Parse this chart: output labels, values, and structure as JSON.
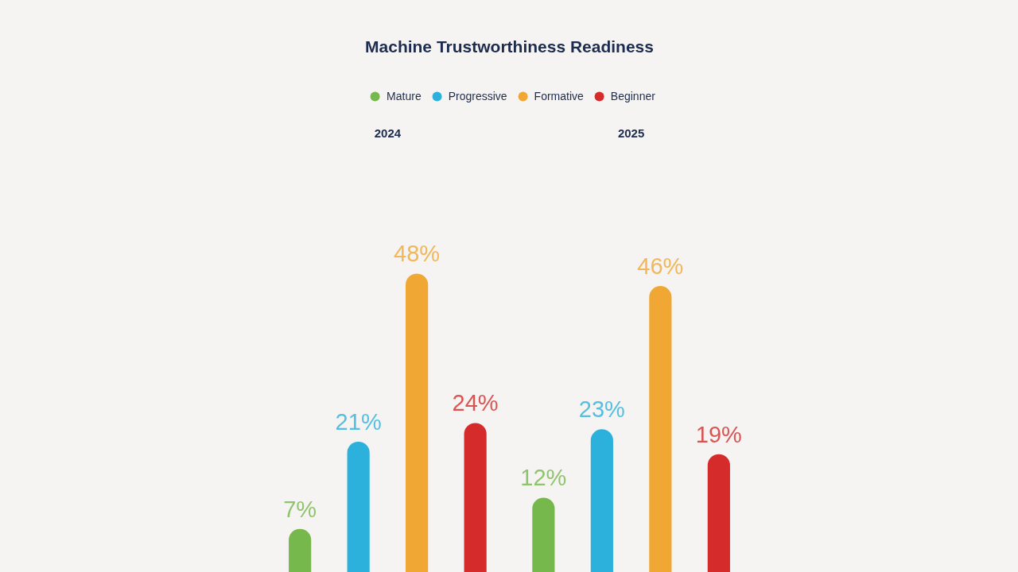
{
  "chart_data": {
    "type": "bar",
    "title": "Machine Trustworthiness Readiness",
    "categories": [
      "2024",
      "2025"
    ],
    "series": [
      {
        "name": "Mature",
        "color": "#76b84c",
        "values": [
          7,
          12
        ],
        "value_labels": [
          "7%",
          "12%"
        ]
      },
      {
        "name": "Progressive",
        "color": "#2bb1dc",
        "values": [
          21,
          23
        ],
        "value_labels": [
          "21%",
          "23%"
        ]
      },
      {
        "name": "Formative",
        "color": "#f0a733",
        "values": [
          48,
          46
        ],
        "value_labels": [
          "48%",
          "46%"
        ]
      },
      {
        "name": "Beginner",
        "color": "#d52b2a",
        "values": [
          24,
          19
        ],
        "value_labels": [
          "24%",
          "19%"
        ]
      }
    ],
    "legend": "top",
    "tick_labels": "x"
  }
}
